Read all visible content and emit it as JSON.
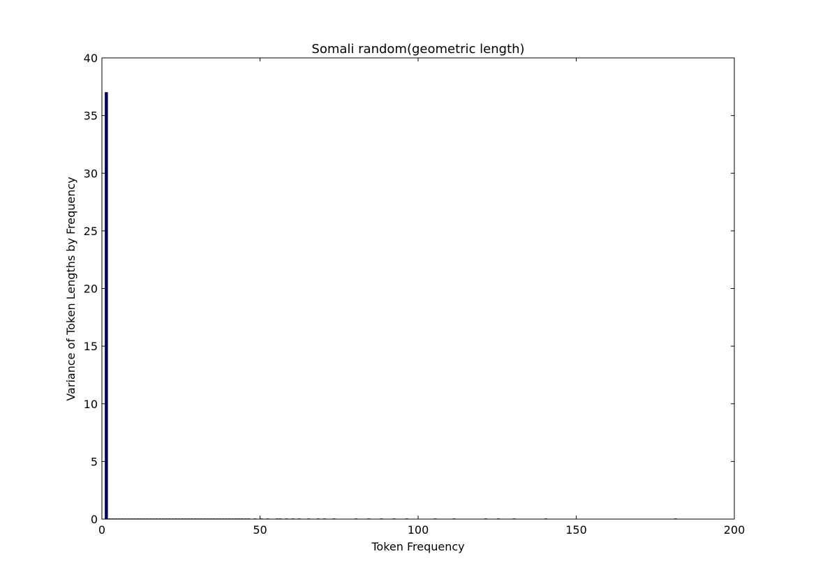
{
  "chart_data": {
    "type": "bar",
    "title": "Somali random(geometric length)",
    "xlabel": "Token Frequency",
    "ylabel": "Variance of Token Lengths by Frequency",
    "xlim": [
      0,
      200
    ],
    "ylim": [
      0,
      40
    ],
    "xticks": [
      0,
      50,
      100,
      150,
      200
    ],
    "yticks": [
      0,
      5,
      10,
      15,
      20,
      25,
      30,
      35,
      40
    ],
    "grid": false,
    "bar_color": "#00007f",
    "x": [
      1,
      2,
      3,
      4,
      5,
      6,
      7,
      8,
      9,
      10,
      11,
      12,
      13,
      14,
      15,
      16,
      17,
      18,
      19,
      20,
      21,
      22,
      23,
      24,
      25,
      26,
      27,
      28,
      29,
      30,
      31,
      32,
      33,
      34,
      35,
      36,
      37,
      38,
      39,
      40,
      41,
      42,
      43,
      44,
      45,
      46,
      48,
      50,
      52,
      55,
      56,
      58,
      60,
      62,
      65,
      68,
      70,
      73,
      80,
      84,
      88,
      92,
      96,
      105,
      111,
      121,
      125,
      130,
      140,
      181
    ],
    "values": [
      37,
      0,
      0,
      0,
      0,
      0,
      0,
      0,
      0,
      0,
      0,
      0,
      0,
      0,
      0,
      0,
      0,
      0,
      0,
      0,
      0,
      0,
      0,
      0,
      0,
      0,
      0,
      0,
      0,
      0,
      0,
      0,
      0,
      0,
      0,
      0,
      0,
      0,
      0,
      0,
      0,
      0,
      0,
      0,
      0,
      0,
      0,
      0,
      0,
      0,
      0,
      0,
      0,
      0,
      0,
      0,
      0,
      0,
      0,
      0,
      0,
      0,
      0,
      0,
      0,
      0,
      0,
      0,
      0,
      0
    ]
  }
}
